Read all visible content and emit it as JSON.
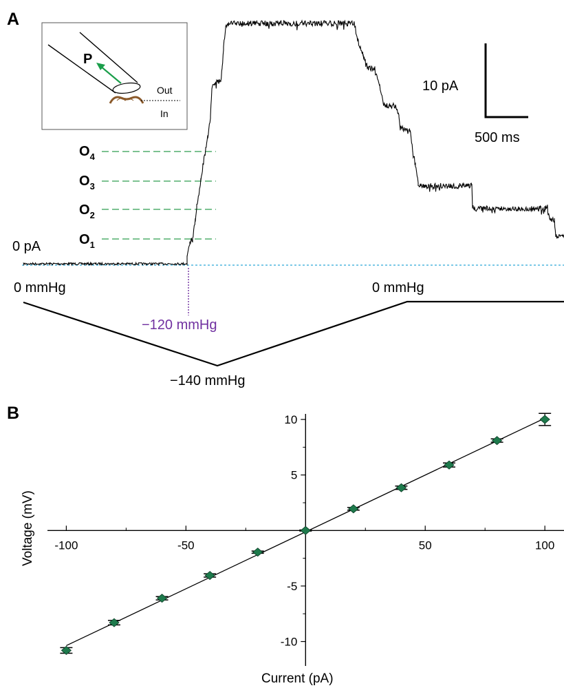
{
  "panel_a": {
    "label": "A",
    "zero_current_label": "0 pA",
    "pressure_start_label": "0 mmHg",
    "pressure_end_label": "0 mmHg",
    "pressure_threshold_label": "−120 mmHg",
    "pressure_min_label": "−140 mmHg",
    "scale_current_label": "10 pA",
    "scale_time_label": "500 ms",
    "open_levels": [
      {
        "letter": "O",
        "sub": "4"
      },
      {
        "letter": "O",
        "sub": "3"
      },
      {
        "letter": "O",
        "sub": "2"
      },
      {
        "letter": "O",
        "sub": "1"
      }
    ],
    "inset": {
      "pipette_label": "P",
      "outside_label": "Out",
      "inside_label": "In"
    },
    "colors": {
      "level_lines": "#2e9e4f",
      "baseline": "#2aa7d6",
      "threshold": "#7030a0",
      "arrow": "#1a9e4a",
      "membrane": "#8b5a2b"
    }
  },
  "panel_b": {
    "label": "B"
  },
  "chart_data": {
    "type": "scatter",
    "xlabel": "Current (pA)",
    "ylabel": "Voltage (mV)",
    "xlim": [
      -105,
      108
    ],
    "ylim": [
      -12.2,
      10.5
    ],
    "x_ticks": [
      -100,
      -50,
      50,
      100
    ],
    "y_ticks": [
      10,
      5,
      -5,
      -10
    ],
    "x_tick_labels": [
      "-100",
      "-50",
      "50",
      "100"
    ],
    "y_tick_labels": [
      "10",
      "5",
      "-5",
      "-10"
    ],
    "series": [
      {
        "x": [
          -100,
          -80,
          -60,
          -40,
          -20,
          0,
          20,
          40,
          60,
          80,
          100
        ],
        "y": [
          -10.8,
          -8.3,
          -6.1,
          -4.05,
          -1.95,
          0,
          1.95,
          3.85,
          5.9,
          8.1,
          10.0
        ],
        "err": [
          0.25,
          0.2,
          0.15,
          0.15,
          0.1,
          0.05,
          0.12,
          0.15,
          0.18,
          0.15,
          0.55
        ],
        "marker_color": "#1e7a4c",
        "fit": "linear"
      }
    ],
    "grid": false
  }
}
